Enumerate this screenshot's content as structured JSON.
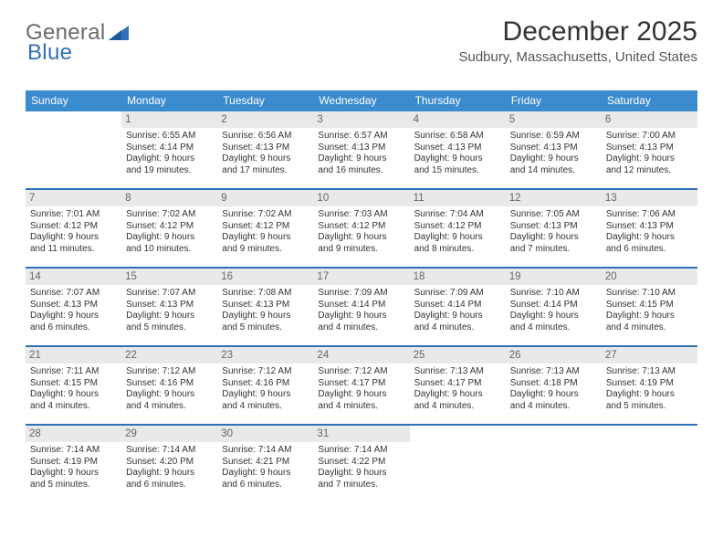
{
  "brand": {
    "part1": "General",
    "part2": "Blue"
  },
  "title": "December 2025",
  "location": "Sudbury, Massachusetts, United States",
  "colors": {
    "header_bg": "#3b8bcf",
    "rule": "#2f71b8",
    "daynum_bg": "#e9e9e9",
    "text": "#333333"
  },
  "daysOfWeek": [
    "Sunday",
    "Monday",
    "Tuesday",
    "Wednesday",
    "Thursday",
    "Friday",
    "Saturday"
  ],
  "weeks": [
    [
      null,
      {
        "n": "1",
        "sr": "Sunrise: 6:55 AM",
        "ss": "Sunset: 4:14 PM",
        "d1": "Daylight: 9 hours",
        "d2": "and 19 minutes."
      },
      {
        "n": "2",
        "sr": "Sunrise: 6:56 AM",
        "ss": "Sunset: 4:13 PM",
        "d1": "Daylight: 9 hours",
        "d2": "and 17 minutes."
      },
      {
        "n": "3",
        "sr": "Sunrise: 6:57 AM",
        "ss": "Sunset: 4:13 PM",
        "d1": "Daylight: 9 hours",
        "d2": "and 16 minutes."
      },
      {
        "n": "4",
        "sr": "Sunrise: 6:58 AM",
        "ss": "Sunset: 4:13 PM",
        "d1": "Daylight: 9 hours",
        "d2": "and 15 minutes."
      },
      {
        "n": "5",
        "sr": "Sunrise: 6:59 AM",
        "ss": "Sunset: 4:13 PM",
        "d1": "Daylight: 9 hours",
        "d2": "and 14 minutes."
      },
      {
        "n": "6",
        "sr": "Sunrise: 7:00 AM",
        "ss": "Sunset: 4:13 PM",
        "d1": "Daylight: 9 hours",
        "d2": "and 12 minutes."
      }
    ],
    [
      {
        "n": "7",
        "sr": "Sunrise: 7:01 AM",
        "ss": "Sunset: 4:12 PM",
        "d1": "Daylight: 9 hours",
        "d2": "and 11 minutes."
      },
      {
        "n": "8",
        "sr": "Sunrise: 7:02 AM",
        "ss": "Sunset: 4:12 PM",
        "d1": "Daylight: 9 hours",
        "d2": "and 10 minutes."
      },
      {
        "n": "9",
        "sr": "Sunrise: 7:02 AM",
        "ss": "Sunset: 4:12 PM",
        "d1": "Daylight: 9 hours",
        "d2": "and 9 minutes."
      },
      {
        "n": "10",
        "sr": "Sunrise: 7:03 AM",
        "ss": "Sunset: 4:12 PM",
        "d1": "Daylight: 9 hours",
        "d2": "and 9 minutes."
      },
      {
        "n": "11",
        "sr": "Sunrise: 7:04 AM",
        "ss": "Sunset: 4:12 PM",
        "d1": "Daylight: 9 hours",
        "d2": "and 8 minutes."
      },
      {
        "n": "12",
        "sr": "Sunrise: 7:05 AM",
        "ss": "Sunset: 4:13 PM",
        "d1": "Daylight: 9 hours",
        "d2": "and 7 minutes."
      },
      {
        "n": "13",
        "sr": "Sunrise: 7:06 AM",
        "ss": "Sunset: 4:13 PM",
        "d1": "Daylight: 9 hours",
        "d2": "and 6 minutes."
      }
    ],
    [
      {
        "n": "14",
        "sr": "Sunrise: 7:07 AM",
        "ss": "Sunset: 4:13 PM",
        "d1": "Daylight: 9 hours",
        "d2": "and 6 minutes."
      },
      {
        "n": "15",
        "sr": "Sunrise: 7:07 AM",
        "ss": "Sunset: 4:13 PM",
        "d1": "Daylight: 9 hours",
        "d2": "and 5 minutes."
      },
      {
        "n": "16",
        "sr": "Sunrise: 7:08 AM",
        "ss": "Sunset: 4:13 PM",
        "d1": "Daylight: 9 hours",
        "d2": "and 5 minutes."
      },
      {
        "n": "17",
        "sr": "Sunrise: 7:09 AM",
        "ss": "Sunset: 4:14 PM",
        "d1": "Daylight: 9 hours",
        "d2": "and 4 minutes."
      },
      {
        "n": "18",
        "sr": "Sunrise: 7:09 AM",
        "ss": "Sunset: 4:14 PM",
        "d1": "Daylight: 9 hours",
        "d2": "and 4 minutes."
      },
      {
        "n": "19",
        "sr": "Sunrise: 7:10 AM",
        "ss": "Sunset: 4:14 PM",
        "d1": "Daylight: 9 hours",
        "d2": "and 4 minutes."
      },
      {
        "n": "20",
        "sr": "Sunrise: 7:10 AM",
        "ss": "Sunset: 4:15 PM",
        "d1": "Daylight: 9 hours",
        "d2": "and 4 minutes."
      }
    ],
    [
      {
        "n": "21",
        "sr": "Sunrise: 7:11 AM",
        "ss": "Sunset: 4:15 PM",
        "d1": "Daylight: 9 hours",
        "d2": "and 4 minutes."
      },
      {
        "n": "22",
        "sr": "Sunrise: 7:12 AM",
        "ss": "Sunset: 4:16 PM",
        "d1": "Daylight: 9 hours",
        "d2": "and 4 minutes."
      },
      {
        "n": "23",
        "sr": "Sunrise: 7:12 AM",
        "ss": "Sunset: 4:16 PM",
        "d1": "Daylight: 9 hours",
        "d2": "and 4 minutes."
      },
      {
        "n": "24",
        "sr": "Sunrise: 7:12 AM",
        "ss": "Sunset: 4:17 PM",
        "d1": "Daylight: 9 hours",
        "d2": "and 4 minutes."
      },
      {
        "n": "25",
        "sr": "Sunrise: 7:13 AM",
        "ss": "Sunset: 4:17 PM",
        "d1": "Daylight: 9 hours",
        "d2": "and 4 minutes."
      },
      {
        "n": "26",
        "sr": "Sunrise: 7:13 AM",
        "ss": "Sunset: 4:18 PM",
        "d1": "Daylight: 9 hours",
        "d2": "and 4 minutes."
      },
      {
        "n": "27",
        "sr": "Sunrise: 7:13 AM",
        "ss": "Sunset: 4:19 PM",
        "d1": "Daylight: 9 hours",
        "d2": "and 5 minutes."
      }
    ],
    [
      {
        "n": "28",
        "sr": "Sunrise: 7:14 AM",
        "ss": "Sunset: 4:19 PM",
        "d1": "Daylight: 9 hours",
        "d2": "and 5 minutes."
      },
      {
        "n": "29",
        "sr": "Sunrise: 7:14 AM",
        "ss": "Sunset: 4:20 PM",
        "d1": "Daylight: 9 hours",
        "d2": "and 6 minutes."
      },
      {
        "n": "30",
        "sr": "Sunrise: 7:14 AM",
        "ss": "Sunset: 4:21 PM",
        "d1": "Daylight: 9 hours",
        "d2": "and 6 minutes."
      },
      {
        "n": "31",
        "sr": "Sunrise: 7:14 AM",
        "ss": "Sunset: 4:22 PM",
        "d1": "Daylight: 9 hours",
        "d2": "and 7 minutes."
      },
      null,
      null,
      null
    ]
  ]
}
